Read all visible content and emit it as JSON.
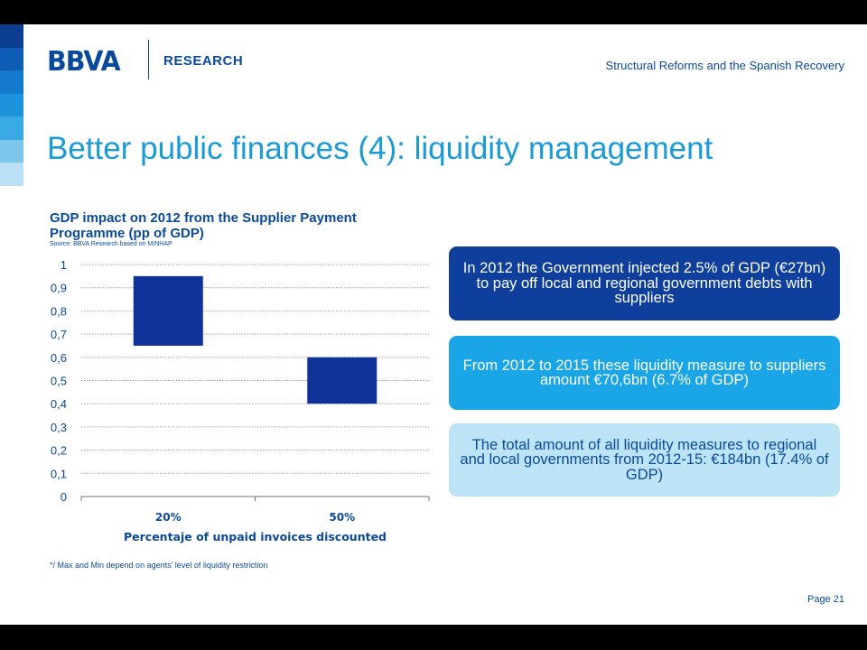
{
  "header": {
    "logo": "BBVA",
    "unit": "RESEARCH",
    "presentation_title": "Structural Reforms and the Spanish Recovery"
  },
  "page_title": "Better public finances (4): liquidity management",
  "stripe_colors": [
    "#0b3d91",
    "#0d5cb5",
    "#1478cc",
    "#1e93dc",
    "#3aaae4",
    "#7cc6ec",
    "#b9e0f5"
  ],
  "boxes": {
    "box1": "In 2012 the Government injected 2.5% of GDP (€27bn) to pay off local and regional government debts with suppliers",
    "box2": "From 2012 to 2015 these liquidity measure to suppliers amount €70,6bn (6.7% of GDP)",
    "box3": "The total amount of all liquidity measures to regional and local governments from 2012-15: €184bn (17.4% of GDP)"
  },
  "footnote": "*/ Max and Min depend on agents' level of liquidity restriction",
  "page_number": "Page 21",
  "chart_data": {
    "type": "bar",
    "title": "GDP impact on 2012 from the Supplier Payment Programme (pp of GDP)",
    "source": "Source: BBVA Research based on MINHAP",
    "xlabel": "Percentaje of unpaid invoices discounted",
    "ylabel": "",
    "categories": [
      "20%",
      "50%"
    ],
    "series": [
      {
        "min": [
          0.65,
          0.4
        ],
        "max": [
          0.95,
          0.6
        ]
      }
    ],
    "ylim": [
      0,
      1
    ],
    "yticks": [
      0,
      0.1,
      0.2,
      0.3,
      0.4,
      0.5,
      0.6,
      0.7,
      0.8,
      0.9,
      1
    ],
    "ytick_labels": [
      "0",
      "0,1",
      "0,2",
      "0,3",
      "0,4",
      "0,5",
      "0,6",
      "0,7",
      "0,8",
      "0,9",
      "1"
    ],
    "bar_color": "#0f3299",
    "grid": true,
    "legend": "none"
  }
}
